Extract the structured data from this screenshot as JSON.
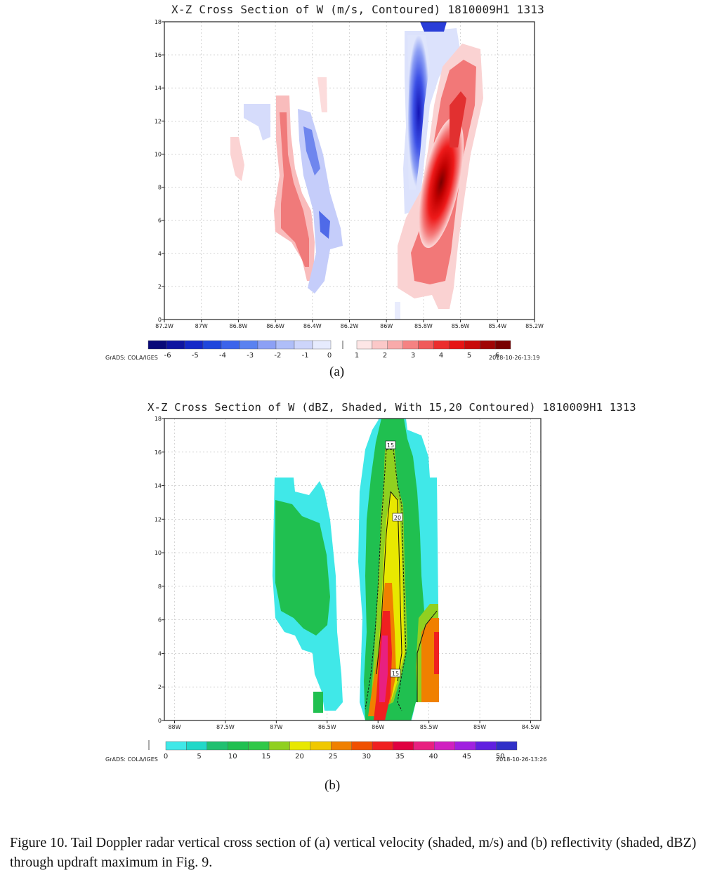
{
  "panel_a": {
    "title": "X-Z Cross Section of W (m/s, Contoured) 1810009H1 1313",
    "subfigure_label": "(a)",
    "credit": "GrADS: COLA/IGES",
    "timestamp": "2018-10-26-13:19"
  },
  "panel_b": {
    "title": "X-Z Cross Section of W (dBZ, Shaded, With 15,20 Contoured) 1810009H1 1313",
    "subfigure_label": "(b)",
    "credit": "GrADS: COLA/IGES",
    "timestamp": "2018-10-26-13:26"
  },
  "caption": "Figure 10. Tail Doppler radar vertical cross section of (a) vertical velocity (shaded, m/s) and (b) reflectivity (shaded, dBZ) through updraft maximum in Fig. 9.",
  "chart_data": [
    {
      "type": "heatmap",
      "title": "X-Z Cross Section of W (m/s, Contoured) 1810009H1 1313",
      "x_tick_labels": [
        "87.2W",
        "87W",
        "86.8W",
        "86.6W",
        "86.4W",
        "86.2W",
        "86W",
        "85.8W",
        "85.6W",
        "85.4W",
        "85.2W"
      ],
      "x_range": [
        -87.2,
        -85.2
      ],
      "y_tick_labels": [
        "0",
        "2",
        "4",
        "6",
        "8",
        "10",
        "12",
        "14",
        "16",
        "18"
      ],
      "y_range": [
        0,
        18
      ],
      "grid": true,
      "colorbar": {
        "labels": [
          "-6",
          "-5",
          "-4",
          "-3",
          "-2",
          "-1",
          "0",
          "1",
          "2",
          "3",
          "4",
          "5",
          "6"
        ],
        "neg_colors": [
          "#0a0a78",
          "#0f14a0",
          "#1428c8",
          "#1e46dc",
          "#3c64eb",
          "#5a82f0",
          "#8ca0f5",
          "#afbef8",
          "#cdd5fb",
          "#e6ebfd"
        ],
        "pos_colors": [
          "#fde6e6",
          "#fbc8c8",
          "#f8aaaa",
          "#f58282",
          "#f05a5a",
          "#eb2d2d",
          "#e61414",
          "#c80a0a",
          "#a00505",
          "#780000"
        ]
      },
      "features": [
        {
          "name": "strong updraft",
          "x": [
            -85.85,
            -85.55
          ],
          "z": [
            1,
            16
          ],
          "peak_w": 6
        },
        {
          "name": "downdraft",
          "x": [
            -86.0,
            -85.7
          ],
          "z": [
            4,
            18
          ],
          "peak_w": -4
        },
        {
          "name": "weak updraft",
          "x": [
            -86.65,
            -86.35
          ],
          "z": [
            2,
            13
          ],
          "peak_w": 2
        },
        {
          "name": "weak downdraft",
          "x": [
            -86.45,
            -86.25
          ],
          "z": [
            2,
            12
          ],
          "peak_w": -2
        }
      ]
    },
    {
      "type": "heatmap",
      "title": "X-Z Cross Section of W (dBZ, Shaded, With 15,20 Contoured) 1810009H1 1313",
      "x_tick_labels": [
        "88W",
        "87.5W",
        "87W",
        "86.5W",
        "86W",
        "85.5W",
        "85W",
        "84.5W"
      ],
      "x_range": [
        -88.1,
        -84.4
      ],
      "y_tick_labels": [
        "0",
        "2",
        "4",
        "6",
        "8",
        "10",
        "12",
        "14",
        "16",
        "18"
      ],
      "y_range": [
        0,
        18
      ],
      "grid": true,
      "contours": [
        "15",
        "20"
      ],
      "contour_labels": [
        "15",
        "20",
        "15"
      ],
      "colorbar": {
        "labels": [
          "0",
          "5",
          "10",
          "15",
          "20",
          "25",
          "30",
          "35",
          "40",
          "45",
          "50"
        ],
        "colors": [
          "#40e8e8",
          "#20d8c8",
          "#20c070",
          "#20c050",
          "#30c848",
          "#90d020",
          "#e8e800",
          "#f0c800",
          "#f08000",
          "#f05000",
          "#f02020",
          "#e00040",
          "#e82080",
          "#d020c0",
          "#a020e0",
          "#6020e0",
          "#3030c8"
        ]
      },
      "features": [
        {
          "name": "western echo",
          "x": [
            -87.0,
            -86.3
          ],
          "z": [
            1,
            14.5
          ],
          "peak_dbz": 12
        },
        {
          "name": "convective core",
          "x": [
            -86.0,
            -85.5
          ],
          "z": [
            0,
            18
          ],
          "peak_dbz": 35
        },
        {
          "name": "eastern echo",
          "x": [
            -85.6,
            -85.2
          ],
          "z": [
            1,
            7
          ],
          "peak_dbz": 30
        }
      ]
    }
  ]
}
